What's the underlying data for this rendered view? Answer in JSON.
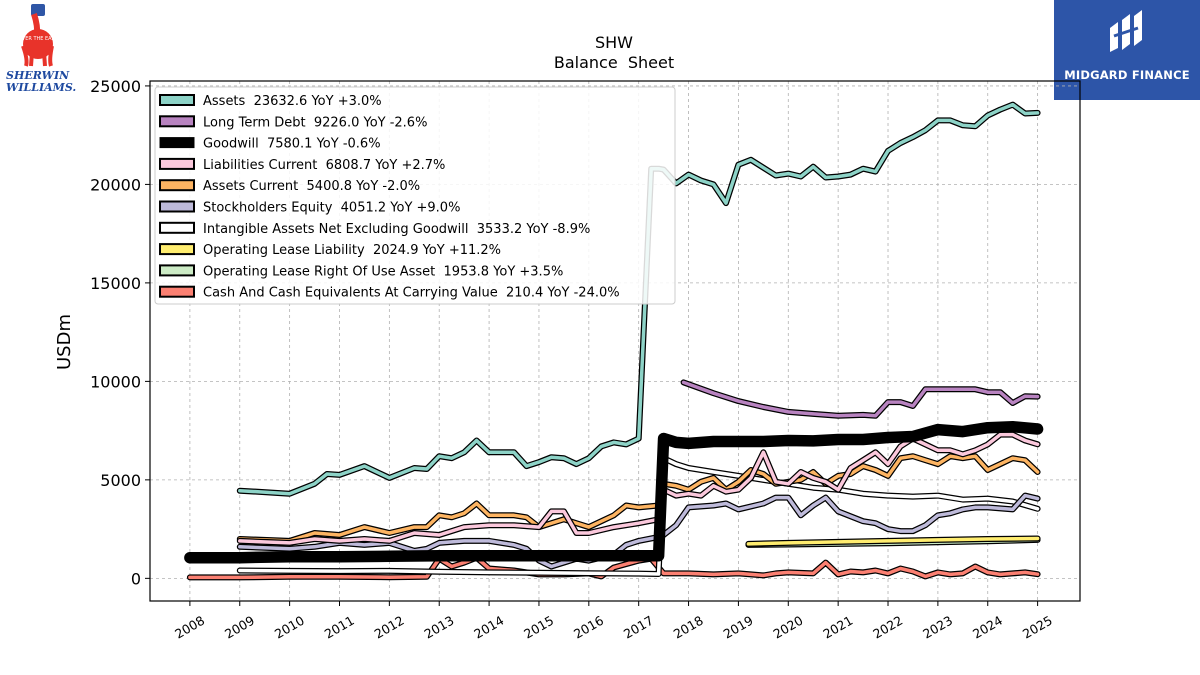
{
  "branding": {
    "left_logo_line1": "SHERWIN",
    "left_logo_line2": "WILLIAMS.",
    "left_logo_badge": "COVER THE EARTH",
    "right_logo_text": "MIDGARD FINANCE",
    "right_logo_color": "#2d55a8"
  },
  "chart_data": {
    "type": "line",
    "title": "SHW",
    "subtitle": "Balance  Sheet",
    "xlabel": "",
    "ylabel": "USDm",
    "xlim": [
      2007.2,
      2025.85
    ],
    "ylim": [
      -1150,
      25250
    ],
    "xticks": [
      2008,
      2009,
      2010,
      2011,
      2012,
      2013,
      2014,
      2015,
      2016,
      2017,
      2018,
      2019,
      2020,
      2021,
      2022,
      2023,
      2024,
      2025
    ],
    "yticks": [
      0,
      5000,
      10000,
      15000,
      20000,
      25000
    ],
    "grid": true,
    "legend_position": "top-left",
    "series": [
      {
        "name": "Assets  23632.6 YoY +3.0%",
        "color": "#8dd3c7",
        "width": 3.5,
        "x": [
          2009,
          2010,
          2010.5,
          2010.75,
          2011,
          2011.5,
          2012,
          2012.5,
          2012.75,
          2013,
          2013.25,
          2013.5,
          2013.75,
          2014,
          2014.5,
          2014.75,
          2015,
          2015.25,
          2015.5,
          2015.75,
          2016,
          2016.25,
          2016.5,
          2016.75,
          2017,
          2017.25,
          2017.4,
          2017.5,
          2017.75,
          2018,
          2018.25,
          2018.5,
          2018.75,
          2019,
          2019.25,
          2019.5,
          2019.75,
          2020,
          2020.25,
          2020.5,
          2020.75,
          2021,
          2021.25,
          2021.5,
          2021.75,
          2022,
          2022.25,
          2022.5,
          2022.75,
          2023,
          2023.25,
          2023.5,
          2023.75,
          2024,
          2024.25,
          2024.5,
          2024.75,
          2025
        ],
        "y": [
          4450,
          4300,
          4800,
          5300,
          5250,
          5700,
          5100,
          5600,
          5550,
          6200,
          6100,
          6400,
          7000,
          6400,
          6400,
          5700,
          5900,
          6150,
          6100,
          5800,
          6100,
          6700,
          6900,
          6800,
          7100,
          20800,
          20800,
          20750,
          20050,
          20500,
          20200,
          20000,
          19050,
          21000,
          21250,
          20850,
          20450,
          20550,
          20400,
          20900,
          20350,
          20400,
          20500,
          20800,
          20650,
          21700,
          22100,
          22400,
          22750,
          23250,
          23250,
          23000,
          22950,
          23500,
          23800,
          24050,
          23600,
          23632
        ]
      },
      {
        "name": "Long Term Debt  9226.0 YoY -2.6%",
        "color": "#b883c0",
        "width": 3.5,
        "x": [
          2017.9,
          2018.5,
          2019,
          2019.5,
          2020,
          2020.5,
          2021,
          2021.5,
          2021.75,
          2022,
          2022.25,
          2022.5,
          2022.75,
          2023,
          2023.5,
          2023.75,
          2024,
          2024.25,
          2024.5,
          2024.75,
          2025
        ],
        "y": [
          9950,
          9400,
          9000,
          8700,
          8450,
          8350,
          8250,
          8300,
          8250,
          8950,
          8950,
          8750,
          9600,
          9600,
          9600,
          9600,
          9450,
          9450,
          8900,
          9250,
          9226
        ]
      },
      {
        "name": "Goodwill  7580.1 YoY -0.6%",
        "color": "#000000",
        "width": 9,
        "x": [
          2008,
          2009,
          2010,
          2011,
          2012,
          2013,
          2014,
          2015,
          2016,
          2017,
          2017.4,
          2017.5,
          2017.75,
          2018,
          2018.5,
          2019,
          2019.5,
          2020,
          2020.5,
          2021,
          2021.5,
          2022,
          2022.5,
          2023,
          2023.5,
          2024,
          2024.5,
          2025
        ],
        "y": [
          1050,
          1050,
          1100,
          1100,
          1120,
          1150,
          1150,
          1150,
          1150,
          1150,
          1150,
          7100,
          6900,
          6850,
          6950,
          6950,
          6950,
          7000,
          6980,
          7050,
          7050,
          7150,
          7200,
          7550,
          7450,
          7650,
          7700,
          7580
        ]
      },
      {
        "name": "Liabilities Current  6808.7 YoY +2.7%",
        "color": "#fbc8dc",
        "width": 3.5,
        "x": [
          2009,
          2010,
          2010.5,
          2011,
          2011.5,
          2012,
          2012.5,
          2013,
          2013.5,
          2014,
          2014.5,
          2015,
          2015.25,
          2015.5,
          2015.75,
          2016,
          2016.5,
          2017,
          2017.4,
          2017.5,
          2017.75,
          2018,
          2018.25,
          2018.5,
          2018.75,
          2019,
          2019.25,
          2019.5,
          2019.75,
          2020,
          2020.25,
          2020.5,
          2020.75,
          2021,
          2021.25,
          2021.5,
          2021.75,
          2022,
          2022.25,
          2022.5,
          2022.75,
          2023,
          2023.25,
          2023.5,
          2023.75,
          2024,
          2024.25,
          2024.5,
          2024.75,
          2025
        ],
        "y": [
          1900,
          1800,
          2000,
          1900,
          2000,
          1900,
          2300,
          2200,
          2600,
          2700,
          2700,
          2600,
          3400,
          3400,
          2300,
          2300,
          2600,
          2800,
          3000,
          4500,
          4200,
          4300,
          4200,
          4700,
          4400,
          4500,
          5100,
          6400,
          4900,
          4800,
          5400,
          5100,
          4900,
          4500,
          5600,
          6000,
          6400,
          5800,
          6700,
          7100,
          6800,
          6500,
          6500,
          6300,
          6500,
          6800,
          7300,
          7300,
          7000,
          6808
        ]
      },
      {
        "name": "Assets Current  5400.8 YoY -2.0%",
        "color": "#fdb462",
        "width": 3.5,
        "x": [
          2009,
          2010,
          2010.5,
          2011,
          2011.5,
          2012,
          2012.5,
          2012.75,
          2013,
          2013.25,
          2013.5,
          2013.75,
          2014,
          2014.5,
          2014.75,
          2015,
          2015.5,
          2015.75,
          2016,
          2016.5,
          2016.75,
          2017,
          2017.4,
          2017.5,
          2017.75,
          2018,
          2018.25,
          2018.5,
          2018.75,
          2019,
          2019.25,
          2019.5,
          2019.75,
          2020,
          2020.25,
          2020.5,
          2020.75,
          2021,
          2021.25,
          2021.5,
          2021.75,
          2022,
          2022.25,
          2022.5,
          2022.75,
          2023,
          2023.25,
          2023.5,
          2023.75,
          2024,
          2024.25,
          2024.5,
          2024.75,
          2025
        ],
        "y": [
          2000,
          1900,
          2300,
          2200,
          2600,
          2300,
          2600,
          2600,
          3200,
          3100,
          3300,
          3800,
          3200,
          3200,
          3100,
          2600,
          3000,
          2800,
          2600,
          3200,
          3700,
          3600,
          3700,
          4800,
          4700,
          4500,
          4900,
          5100,
          4500,
          4900,
          5500,
          5300,
          4800,
          4900,
          5000,
          5400,
          4800,
          5200,
          5300,
          5700,
          5500,
          5200,
          6100,
          6200,
          6000,
          5800,
          6200,
          6100,
          6200,
          5500,
          5800,
          6100,
          6000,
          5400
        ]
      },
      {
        "name": "Stockholders Equity  4051.2 YoY +9.0%",
        "color": "#bebada",
        "width": 3.5,
        "x": [
          2009,
          2010,
          2010.5,
          2011,
          2011.5,
          2012,
          2012.5,
          2012.75,
          2013,
          2013.5,
          2014,
          2014.5,
          2014.75,
          2015,
          2015.25,
          2015.5,
          2015.75,
          2016,
          2016.5,
          2016.75,
          2017,
          2017.4,
          2017.5,
          2017.75,
          2018,
          2018.5,
          2018.75,
          2019,
          2019.5,
          2019.75,
          2020,
          2020.25,
          2020.5,
          2020.75,
          2021,
          2021.5,
          2021.75,
          2022,
          2022.25,
          2022.5,
          2022.75,
          2023,
          2023.25,
          2023.5,
          2023.75,
          2024,
          2024.5,
          2024.75,
          2025
        ],
        "y": [
          1600,
          1500,
          1600,
          1800,
          1700,
          1800,
          1400,
          1500,
          1800,
          1900,
          1900,
          1700,
          1500,
          900,
          600,
          800,
          1000,
          900,
          1200,
          1700,
          1900,
          2100,
          2200,
          2700,
          3600,
          3700,
          3800,
          3500,
          3800,
          4100,
          4100,
          3200,
          3700,
          4100,
          3400,
          2900,
          2800,
          2500,
          2400,
          2400,
          2700,
          3200,
          3300,
          3500,
          3600,
          3600,
          3500,
          4200,
          4051
        ]
      },
      {
        "name": "Intangible Assets Net Excluding Goodwill  3533.2 YoY -8.9%",
        "color": "#ffffff",
        "width": 3.5,
        "x": [
          2009,
          2010,
          2011,
          2012,
          2013,
          2014,
          2015,
          2016,
          2017,
          2017.4,
          2017.5,
          2017.75,
          2018,
          2018.5,
          2019,
          2019.5,
          2020,
          2020.5,
          2021,
          2021.5,
          2022,
          2022.5,
          2023,
          2023.5,
          2024,
          2024.5,
          2025
        ],
        "y": [
          400,
          380,
          370,
          380,
          330,
          300,
          280,
          260,
          240,
          220,
          6100,
          5800,
          5600,
          5400,
          5200,
          5000,
          4800,
          4600,
          4500,
          4300,
          4200,
          4150,
          4200,
          4000,
          4050,
          3900,
          3533
        ]
      },
      {
        "name": "Operating Lease Liability  2024.9 YoY +11.2%",
        "color": "#ffed6f",
        "width": 3.5,
        "x": [
          2019.2,
          2020,
          2021,
          2022,
          2023,
          2024,
          2025
        ],
        "y": [
          1750,
          1800,
          1850,
          1900,
          1950,
          2000,
          2025
        ]
      },
      {
        "name": "Operating Lease Right Of Use Asset  1953.8 YoY +3.5%",
        "color": "#ccebc5",
        "width": 3.5,
        "x": [
          2019.2,
          2020,
          2021,
          2022,
          2023,
          2024,
          2025
        ],
        "y": [
          1700,
          1720,
          1750,
          1780,
          1830,
          1880,
          1954
        ]
      },
      {
        "name": "Cash And Cash Equivalents At Carrying Value  210.4 YoY -24.0%",
        "color": "#fb8072",
        "width": 3.5,
        "x": [
          2008,
          2009,
          2010,
          2011,
          2012,
          2012.75,
          2013,
          2013.25,
          2013.5,
          2013.75,
          2014,
          2014.5,
          2015,
          2015.5,
          2016,
          2016.25,
          2016.5,
          2017,
          2017.25,
          2017.5,
          2018,
          2018.5,
          2019,
          2019.25,
          2019.5,
          2019.75,
          2020,
          2020.5,
          2020.75,
          2021,
          2021.25,
          2021.5,
          2021.75,
          2022,
          2022.25,
          2022.5,
          2022.75,
          2023,
          2023.25,
          2023.5,
          2023.75,
          2024,
          2024.25,
          2024.5,
          2024.75,
          2025
        ],
        "y": [
          50,
          50,
          80,
          80,
          60,
          80,
          1000,
          600,
          800,
          1050,
          500,
          400,
          200,
          200,
          250,
          100,
          550,
          900,
          1000,
          250,
          250,
          200,
          250,
          200,
          150,
          250,
          300,
          250,
          800,
          200,
          350,
          300,
          400,
          250,
          500,
          350,
          100,
          300,
          200,
          250,
          600,
          300,
          200,
          250,
          300,
          210
        ]
      }
    ]
  }
}
